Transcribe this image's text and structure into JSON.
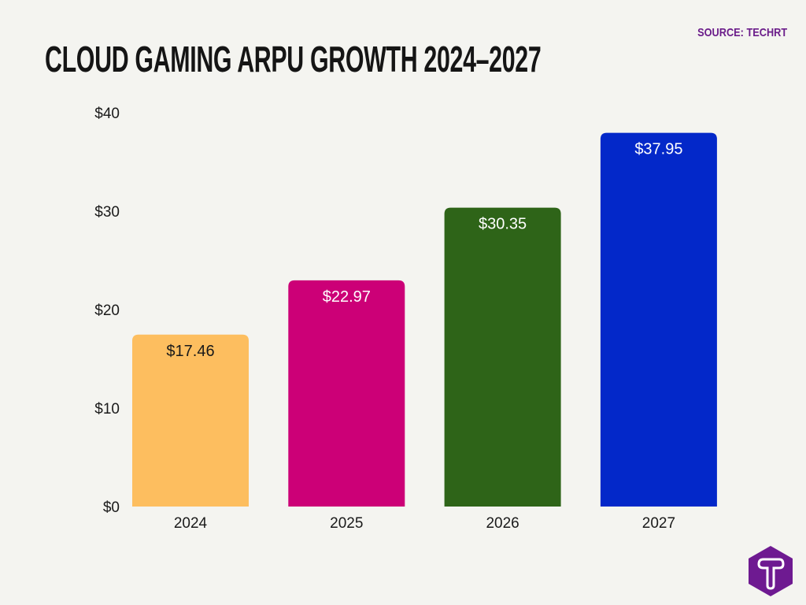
{
  "source": "SOURCE: TECHRT",
  "logo_text": "T",
  "chart_data": {
    "type": "bar",
    "title": "CLOUD GAMING ARPU GROWTH 2024–2027",
    "categories": [
      "2024",
      "2025",
      "2026",
      "2027"
    ],
    "values": [
      17.46,
      22.97,
      30.35,
      37.95
    ],
    "data_labels": [
      "$17.46",
      "$22.97",
      "$30.35",
      "$37.95"
    ],
    "colors": [
      "#fdbe5f",
      "#cc0077",
      "#2e6418",
      "#0328c9"
    ],
    "label_colors": [
      "#1a1a1a",
      "#ffffff",
      "#ffffff",
      "#ffffff"
    ],
    "yticks": [
      0,
      10,
      20,
      30,
      40
    ],
    "ytick_labels": [
      "$0",
      "$10",
      "$20",
      "$30",
      "$40"
    ],
    "ylim": [
      0,
      40
    ],
    "xlabel": "",
    "ylabel": "",
    "grid": false,
    "legend": "none"
  }
}
